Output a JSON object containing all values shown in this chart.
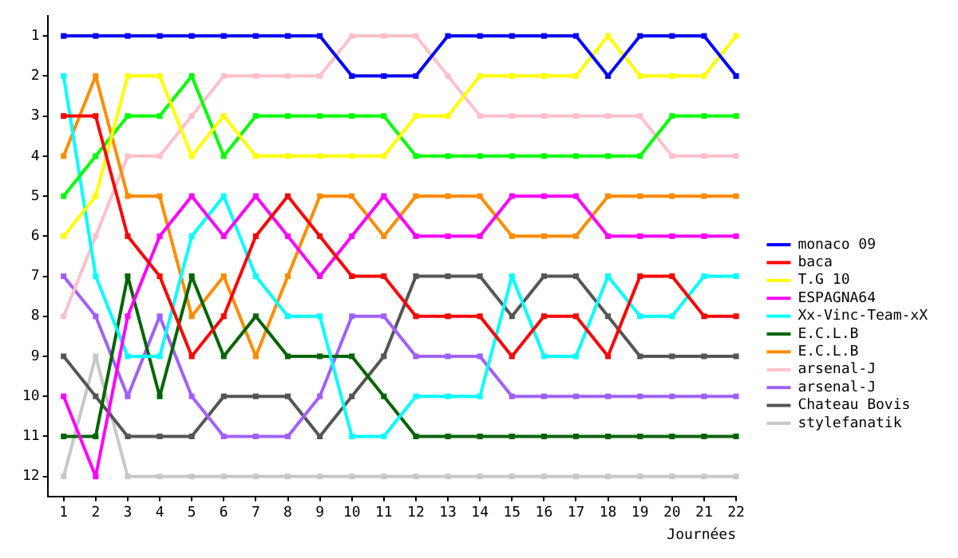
{
  "chart_data": {
    "type": "line",
    "xlabel": "Journées",
    "x": [
      1,
      2,
      3,
      4,
      5,
      6,
      7,
      8,
      9,
      10,
      11,
      12,
      13,
      14,
      15,
      16,
      17,
      18,
      19,
      20,
      21,
      22
    ],
    "xlim": [
      0.5,
      22
    ],
    "xticks": [
      1,
      2,
      3,
      4,
      5,
      6,
      7,
      8,
      9,
      10,
      11,
      12,
      13,
      14,
      15,
      16,
      17,
      18,
      19,
      20,
      21,
      22
    ],
    "ylim": [
      12.5,
      0.5
    ],
    "yticks": [
      1,
      2,
      3,
      4,
      5,
      6,
      7,
      8,
      9,
      10,
      11,
      12
    ],
    "grid": false,
    "legend": "right",
    "marker": "square",
    "line_style": "solid",
    "series": [
      {
        "name": "monaco 09",
        "color": "#0000ff",
        "values": [
          1,
          1,
          1,
          1,
          1,
          1,
          1,
          1,
          1,
          2,
          2,
          2,
          1,
          1,
          1,
          1,
          1,
          2,
          1,
          1,
          1,
          2
        ]
      },
      {
        "name": "baca",
        "color": "#ff0000",
        "values": [
          3,
          3,
          6,
          7,
          9,
          8,
          6,
          5,
          6,
          7,
          7,
          8,
          8,
          8,
          9,
          8,
          8,
          9,
          7,
          7,
          8,
          8
        ]
      },
      {
        "name": "T.G 10",
        "color": "#ffff00",
        "values": [
          6,
          5,
          2,
          2,
          4,
          3,
          4,
          4,
          4,
          4,
          4,
          3,
          3,
          2,
          2,
          2,
          2,
          1,
          2,
          2,
          2,
          1
        ]
      },
      {
        "color": "#00ff00",
        "values": [
          5,
          4,
          3,
          3,
          2,
          4,
          3,
          3,
          3,
          3,
          3,
          4,
          4,
          4,
          4,
          4,
          4,
          4,
          4,
          3,
          3,
          3
        ]
      },
      {
        "name": "ESPAGNA64",
        "color": "#ff00ff",
        "values": [
          10,
          12,
          8,
          6,
          5,
          6,
          5,
          6,
          7,
          6,
          5,
          6,
          6,
          6,
          5,
          5,
          5,
          6,
          6,
          6,
          6,
          6
        ]
      },
      {
        "name": "Xx-Vinc-Team-xX",
        "color": "#00ffff",
        "values": [
          2,
          7,
          9,
          9,
          6,
          5,
          7,
          8,
          8,
          11,
          11,
          10,
          10,
          10,
          7,
          9,
          9,
          7,
          8,
          8,
          7,
          7
        ]
      },
      {
        "name": "E.C.L.B",
        "color": "#006400",
        "values": [
          11,
          11,
          7,
          10,
          7,
          9,
          8,
          9,
          9,
          9,
          10,
          11,
          11,
          11,
          11,
          11,
          11,
          11,
          11,
          11,
          11,
          11
        ]
      },
      {
        "name": "E.C.L.B",
        "color": "#ff8c00",
        "values": [
          4,
          2,
          5,
          5,
          8,
          7,
          9,
          7,
          5,
          5,
          6,
          5,
          5,
          5,
          6,
          6,
          6,
          5,
          5,
          5,
          5,
          5
        ]
      },
      {
        "name": "arsenal-J",
        "color": "#ffc0cb",
        "values": [
          8,
          6,
          4,
          4,
          3,
          2,
          2,
          2,
          2,
          1,
          1,
          1,
          2,
          3,
          3,
          3,
          3,
          3,
          3,
          4,
          4,
          4
        ]
      },
      {
        "name": "arsenal-J",
        "color": "#a060ff",
        "values": [
          7,
          8,
          10,
          8,
          10,
          11,
          11,
          11,
          10,
          8,
          8,
          9,
          9,
          9,
          10,
          10,
          10,
          10,
          10,
          10,
          10,
          10
        ]
      },
      {
        "name": "Chateau Bovis",
        "color": "#555555",
        "values": [
          9,
          10,
          11,
          11,
          11,
          10,
          10,
          10,
          11,
          10,
          9,
          7,
          7,
          7,
          8,
          7,
          7,
          8,
          9,
          9,
          9,
          9
        ]
      },
      {
        "name": "stylefanatik",
        "color": "#c8c8c8",
        "values": [
          12,
          9,
          12,
          12,
          12,
          12,
          12,
          12,
          12,
          12,
          12,
          12,
          12,
          12,
          12,
          12,
          12,
          12,
          12,
          12,
          12,
          12
        ]
      }
    ]
  }
}
